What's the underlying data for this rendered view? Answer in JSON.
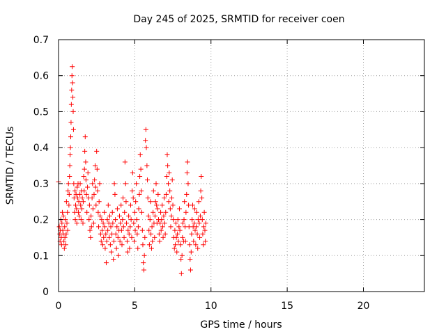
{
  "chart_data": {
    "type": "scatter",
    "title": "Day 245 of 2025, SRMTID for receiver coen",
    "xlabel": "GPS time / hours",
    "ylabel": "SRMTID / TECUs",
    "xlim": [
      0,
      24
    ],
    "ylim": [
      0,
      0.7
    ],
    "xticks": [
      0,
      5,
      10,
      15,
      20
    ],
    "yticks": [
      0,
      0.1,
      0.2,
      0.3,
      0.4,
      0.5,
      0.6,
      0.7
    ],
    "xtick_labels": [
      "0",
      "5",
      "10",
      "15",
      "20"
    ],
    "ytick_labels": [
      "0",
      "0.1",
      "0.2",
      "0.3",
      "0.4",
      "0.5",
      "0.6",
      "0.7"
    ],
    "grid": true,
    "marker": "+",
    "colors": {
      "points": "#ff0000",
      "grid": "#a0a0a0",
      "axes": "#000000"
    },
    "series": [
      {
        "name": "SRMTID",
        "points": [
          [
            0.0,
            0.305
          ],
          [
            0.05,
            0.18
          ],
          [
            0.08,
            0.16
          ],
          [
            0.1,
            0.14
          ],
          [
            0.12,
            0.17
          ],
          [
            0.15,
            0.2
          ],
          [
            0.18,
            0.15
          ],
          [
            0.2,
            0.13
          ],
          [
            0.22,
            0.19
          ],
          [
            0.25,
            0.22
          ],
          [
            0.28,
            0.17
          ],
          [
            0.3,
            0.16
          ],
          [
            0.32,
            0.21
          ],
          [
            0.35,
            0.14
          ],
          [
            0.38,
            0.12
          ],
          [
            0.4,
            0.18
          ],
          [
            0.42,
            0.15
          ],
          [
            0.45,
            0.2
          ],
          [
            0.48,
            0.13
          ],
          [
            0.5,
            0.16
          ],
          [
            0.52,
            0.25
          ],
          [
            0.55,
            0.19
          ],
          [
            0.58,
            0.22
          ],
          [
            0.6,
            0.17
          ],
          [
            0.62,
            0.28
          ],
          [
            0.65,
            0.3
          ],
          [
            0.68,
            0.24
          ],
          [
            0.7,
            0.27
          ],
          [
            0.72,
            0.32
          ],
          [
            0.74,
            0.35
          ],
          [
            0.76,
            0.38
          ],
          [
            0.78,
            0.4
          ],
          [
            0.8,
            0.43
          ],
          [
            0.82,
            0.47
          ],
          [
            0.84,
            0.52
          ],
          [
            0.86,
            0.56
          ],
          [
            0.88,
            0.6
          ],
          [
            0.9,
            0.625
          ],
          [
            0.92,
            0.58
          ],
          [
            0.94,
            0.54
          ],
          [
            0.96,
            0.5
          ],
          [
            0.98,
            0.45
          ],
          [
            1.0,
            0.3
          ],
          [
            1.02,
            0.26
          ],
          [
            1.05,
            0.22
          ],
          [
            1.08,
            0.28
          ],
          [
            1.1,
            0.2
          ],
          [
            1.12,
            0.24
          ],
          [
            1.15,
            0.27
          ],
          [
            1.18,
            0.23
          ],
          [
            1.2,
            0.19
          ],
          [
            1.22,
            0.29
          ],
          [
            1.25,
            0.26
          ],
          [
            1.28,
            0.3
          ],
          [
            1.3,
            0.22
          ],
          [
            1.33,
            0.25
          ],
          [
            1.36,
            0.21
          ],
          [
            1.4,
            0.27
          ],
          [
            1.42,
            0.3
          ],
          [
            1.45,
            0.24
          ],
          [
            1.48,
            0.2
          ],
          [
            1.5,
            0.28
          ],
          [
            1.53,
            0.23
          ],
          [
            1.56,
            0.26
          ],
          [
            1.6,
            0.19
          ],
          [
            1.62,
            0.25
          ],
          [
            1.65,
            0.32
          ],
          [
            1.68,
            0.28
          ],
          [
            1.7,
            0.34
          ],
          [
            1.72,
            0.39
          ],
          [
            1.75,
            0.43
          ],
          [
            1.78,
            0.36
          ],
          [
            1.8,
            0.31
          ],
          [
            1.83,
            0.27
          ],
          [
            1.86,
            0.22
          ],
          [
            1.9,
            0.29
          ],
          [
            1.93,
            0.33
          ],
          [
            1.96,
            0.26
          ],
          [
            2.0,
            0.2
          ],
          [
            2.03,
            0.24
          ],
          [
            2.06,
            0.17
          ],
          [
            2.1,
            0.15
          ],
          [
            2.13,
            0.21
          ],
          [
            2.16,
            0.18
          ],
          [
            2.2,
            0.26
          ],
          [
            2.23,
            0.3
          ],
          [
            2.26,
            0.23
          ],
          [
            2.3,
            0.19
          ],
          [
            2.33,
            0.27
          ],
          [
            2.36,
            0.31
          ],
          [
            2.4,
            0.35
          ],
          [
            2.43,
            0.29
          ],
          [
            2.46,
            0.24
          ],
          [
            2.5,
            0.39
          ],
          [
            2.53,
            0.34
          ],
          [
            2.56,
            0.28
          ],
          [
            2.6,
            0.22
          ],
          [
            2.63,
            0.18
          ],
          [
            2.66,
            0.25
          ],
          [
            2.7,
            0.3
          ],
          [
            2.73,
            0.21
          ],
          [
            2.76,
            0.16
          ],
          [
            2.8,
            0.14
          ],
          [
            2.83,
            0.2
          ],
          [
            2.86,
            0.17
          ],
          [
            2.9,
            0.13
          ],
          [
            2.93,
            0.19
          ],
          [
            2.96,
            0.15
          ],
          [
            3.0,
            0.22
          ],
          [
            3.03,
            0.18
          ],
          [
            3.06,
            0.12
          ],
          [
            3.1,
            0.16
          ],
          [
            3.13,
            0.08
          ],
          [
            3.16,
            0.14
          ],
          [
            3.2,
            0.2
          ],
          [
            3.23,
            0.17
          ],
          [
            3.26,
            0.24
          ],
          [
            3.3,
            0.19
          ],
          [
            3.33,
            0.15
          ],
          [
            3.36,
            0.21
          ],
          [
            3.4,
            0.13
          ],
          [
            3.43,
            0.18
          ],
          [
            3.46,
            0.11
          ],
          [
            3.5,
            0.16
          ],
          [
            3.53,
            0.22
          ],
          [
            3.56,
            0.19
          ],
          [
            3.6,
            0.09
          ],
          [
            3.63,
            0.14
          ],
          [
            3.66,
            0.3
          ],
          [
            3.7,
            0.27
          ],
          [
            3.73,
            0.2
          ],
          [
            3.76,
            0.16
          ],
          [
            3.8,
            0.12
          ],
          [
            3.83,
            0.18
          ],
          [
            3.86,
            0.23
          ],
          [
            3.9,
            0.15
          ],
          [
            3.93,
            0.1
          ],
          [
            3.96,
            0.17
          ],
          [
            4.0,
            0.21
          ],
          [
            4.03,
            0.14
          ],
          [
            4.06,
            0.19
          ],
          [
            4.1,
            0.24
          ],
          [
            4.13,
            0.17
          ],
          [
            4.16,
            0.13
          ],
          [
            4.2,
            0.2
          ],
          [
            4.23,
            0.26
          ],
          [
            4.26,
            0.18
          ],
          [
            4.3,
            0.15
          ],
          [
            4.33,
            0.22
          ],
          [
            4.36,
            0.36
          ],
          [
            4.4,
            0.3
          ],
          [
            4.43,
            0.25
          ],
          [
            4.46,
            0.19
          ],
          [
            4.5,
            0.14
          ],
          [
            4.53,
            0.11
          ],
          [
            4.56,
            0.17
          ],
          [
            4.6,
            0.21
          ],
          [
            4.63,
            0.16
          ],
          [
            4.66,
            0.12
          ],
          [
            4.7,
            0.18
          ],
          [
            4.73,
            0.24
          ],
          [
            4.76,
            0.2
          ],
          [
            4.8,
            0.15
          ],
          [
            4.83,
            0.28
          ],
          [
            4.86,
            0.33
          ],
          [
            4.9,
            0.26
          ],
          [
            4.93,
            0.19
          ],
          [
            4.96,
            0.14
          ],
          [
            5.0,
            0.22
          ],
          [
            5.03,
            0.17
          ],
          [
            5.06,
            0.25
          ],
          [
            5.1,
            0.3
          ],
          [
            5.13,
            0.2
          ],
          [
            5.16,
            0.16
          ],
          [
            5.2,
            0.12
          ],
          [
            5.23,
            0.18
          ],
          [
            5.26,
            0.23
          ],
          [
            5.3,
            0.27
          ],
          [
            5.33,
            0.32
          ],
          [
            5.36,
            0.38
          ],
          [
            5.4,
            0.34
          ],
          [
            5.43,
            0.28
          ],
          [
            5.46,
            0.22
          ],
          [
            5.5,
            0.17
          ],
          [
            5.53,
            0.13
          ],
          [
            5.56,
            0.08
          ],
          [
            5.6,
            0.06
          ],
          [
            5.63,
            0.1
          ],
          [
            5.66,
            0.15
          ],
          [
            5.7,
            0.42
          ],
          [
            5.73,
            0.45
          ],
          [
            5.76,
            0.4
          ],
          [
            5.8,
            0.35
          ],
          [
            5.83,
            0.31
          ],
          [
            5.86,
            0.26
          ],
          [
            5.9,
            0.21
          ],
          [
            5.93,
            0.17
          ],
          [
            5.96,
            0.13
          ],
          [
            6.0,
            0.2
          ],
          [
            6.03,
            0.25
          ],
          [
            6.06,
            0.16
          ],
          [
            6.1,
            0.12
          ],
          [
            6.13,
            0.18
          ],
          [
            6.16,
            0.14
          ],
          [
            6.2,
            0.22
          ],
          [
            6.23,
            0.28
          ],
          [
            6.26,
            0.19
          ],
          [
            6.3,
            0.15
          ],
          [
            6.33,
            0.21
          ],
          [
            6.36,
            0.25
          ],
          [
            6.4,
            0.3
          ],
          [
            6.43,
            0.24
          ],
          [
            6.46,
            0.19
          ],
          [
            6.5,
            0.23
          ],
          [
            6.53,
            0.27
          ],
          [
            6.56,
            0.2
          ],
          [
            6.6,
            0.16
          ],
          [
            6.63,
            0.14
          ],
          [
            6.66,
            0.19
          ],
          [
            6.7,
            0.22
          ],
          [
            6.73,
            0.17
          ],
          [
            6.76,
            0.2
          ],
          [
            6.8,
            0.24
          ],
          [
            6.83,
            0.18
          ],
          [
            6.86,
            0.15
          ],
          [
            6.9,
            0.21
          ],
          [
            6.93,
            0.26
          ],
          [
            6.96,
            0.19
          ],
          [
            7.0,
            0.16
          ],
          [
            7.03,
            0.22
          ],
          [
            7.06,
            0.27
          ],
          [
            7.1,
            0.32
          ],
          [
            7.13,
            0.38
          ],
          [
            7.16,
            0.35
          ],
          [
            7.2,
            0.3
          ],
          [
            7.23,
            0.25
          ],
          [
            7.26,
            0.33
          ],
          [
            7.3,
            0.28
          ],
          [
            7.33,
            0.23
          ],
          [
            7.36,
            0.18
          ],
          [
            7.4,
            0.21
          ],
          [
            7.43,
            0.26
          ],
          [
            7.46,
            0.31
          ],
          [
            7.5,
            0.24
          ],
          [
            7.53,
            0.2
          ],
          [
            7.56,
            0.15
          ],
          [
            7.6,
            0.12
          ],
          [
            7.63,
            0.17
          ],
          [
            7.66,
            0.13
          ],
          [
            7.7,
            0.19
          ],
          [
            7.73,
            0.15
          ],
          [
            7.76,
            0.11
          ],
          [
            7.8,
            0.16
          ],
          [
            7.83,
            0.2
          ],
          [
            7.86,
            0.14
          ],
          [
            7.9,
            0.18
          ],
          [
            7.93,
            0.23
          ],
          [
            7.96,
            0.17
          ],
          [
            8.0,
            0.13
          ],
          [
            8.03,
            0.09
          ],
          [
            8.06,
            0.05
          ],
          [
            8.1,
            0.1
          ],
          [
            8.13,
            0.15
          ],
          [
            8.16,
            0.19
          ],
          [
            8.2,
            0.14
          ],
          [
            8.23,
            0.2
          ],
          [
            8.26,
            0.25
          ],
          [
            8.3,
            0.18
          ],
          [
            8.33,
            0.14
          ],
          [
            8.36,
            0.22
          ],
          [
            8.4,
            0.27
          ],
          [
            8.43,
            0.33
          ],
          [
            8.46,
            0.36
          ],
          [
            8.5,
            0.3
          ],
          [
            8.53,
            0.24
          ],
          [
            8.56,
            0.18
          ],
          [
            8.6,
            0.13
          ],
          [
            8.63,
            0.09
          ],
          [
            8.66,
            0.06
          ],
          [
            8.7,
            0.11
          ],
          [
            8.73,
            0.16
          ],
          [
            8.76,
            0.2
          ],
          [
            8.8,
            0.24
          ],
          [
            8.83,
            0.18
          ],
          [
            8.86,
            0.14
          ],
          [
            8.9,
            0.19
          ],
          [
            8.93,
            0.23
          ],
          [
            8.96,
            0.17
          ],
          [
            9.0,
            0.13
          ],
          [
            9.03,
            0.18
          ],
          [
            9.06,
            0.22
          ],
          [
            9.1,
            0.16
          ],
          [
            9.13,
            0.12
          ],
          [
            9.16,
            0.2
          ],
          [
            9.2,
            0.25
          ],
          [
            9.23,
            0.19
          ],
          [
            9.26,
            0.15
          ],
          [
            9.3,
            0.21
          ],
          [
            9.33,
            0.28
          ],
          [
            9.36,
            0.32
          ],
          [
            9.4,
            0.26
          ],
          [
            9.43,
            0.2
          ],
          [
            9.46,
            0.16
          ],
          [
            9.5,
            0.13
          ],
          [
            9.53,
            0.18
          ],
          [
            9.56,
            0.22
          ],
          [
            9.6,
            0.17
          ],
          [
            9.63,
            0.14
          ],
          [
            9.66,
            0.19
          ]
        ]
      }
    ]
  }
}
